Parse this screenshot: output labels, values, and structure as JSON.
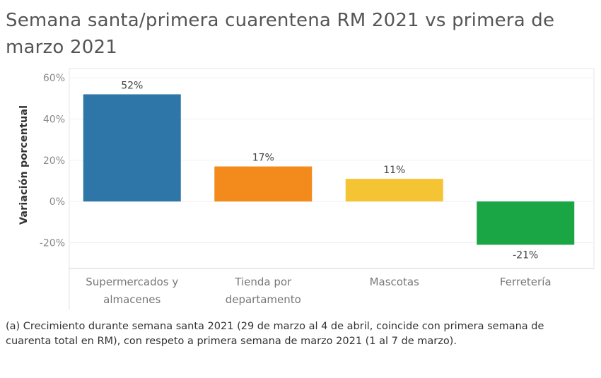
{
  "chart_data": {
    "type": "bar",
    "title": "Semana santa/primera cuarentena RM 2021 vs primera de marzo 2021",
    "xlabel": "",
    "ylabel": "Variación porcentual",
    "categories": [
      [
        "Supermercados y",
        "almacenes"
      ],
      [
        "Tienda por",
        "departamento"
      ],
      [
        "Mascotas"
      ],
      [
        "Ferretería"
      ]
    ],
    "values": [
      52,
      17,
      11,
      -21
    ],
    "data_labels": [
      "52%",
      "17%",
      "11%",
      "-21%"
    ],
    "colors": [
      "#2e75a8",
      "#f28b1c",
      "#f5c435",
      "#1aa645"
    ],
    "yticks": [
      60,
      40,
      20,
      0,
      -20
    ],
    "ytick_labels": [
      "60%",
      "40%",
      "20%",
      "0%",
      "-20%"
    ],
    "ylim": [
      -32.5,
      64.5
    ],
    "grid": true,
    "legend": "none"
  },
  "footnote": "(a) Crecimiento durante semana santa 2021 (29 de marzo al 4 de abril, coincide con primera semana de cuarenta total en RM), con respeto a primera semana de marzo 2021 (1 al 7 de marzo)."
}
